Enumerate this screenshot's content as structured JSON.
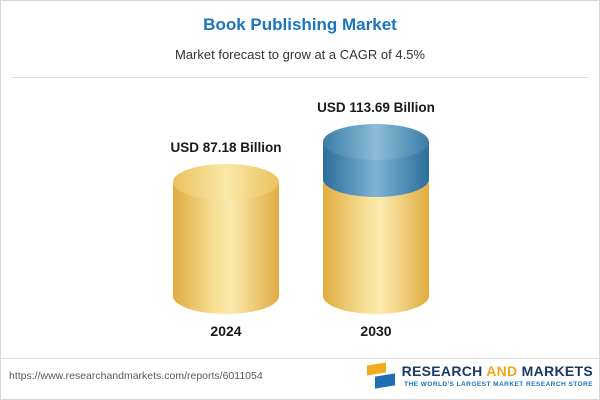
{
  "header": {
    "title": "Book Publishing Market",
    "subtitle": "Market forecast to grow at a CAGR of 4.5%"
  },
  "chart_data": {
    "type": "bar",
    "title": "Book Publishing Market",
    "subtitle": "Market forecast to grow at a CAGR of 4.5%",
    "categories": [
      "2024",
      "2030"
    ],
    "values": [
      87.18,
      113.69
    ],
    "value_labels": [
      "USD 87.18 Billion",
      "USD 113.69 Billion"
    ],
    "unit": "USD Billion",
    "cagr_percent": 4.5,
    "legend_position": "none",
    "grid": false,
    "colors": {
      "bar_base": "#F3CE6B",
      "growth_segment": "#4A89B4"
    }
  },
  "footer": {
    "url": "https://www.researchandmarkets.com/reports/6011054",
    "logo": {
      "word1": "RESEARCH",
      "word2": "AND",
      "word3": "MARKETS",
      "tagline": "THE WORLD'S LARGEST MARKET RESEARCH STORE"
    }
  }
}
